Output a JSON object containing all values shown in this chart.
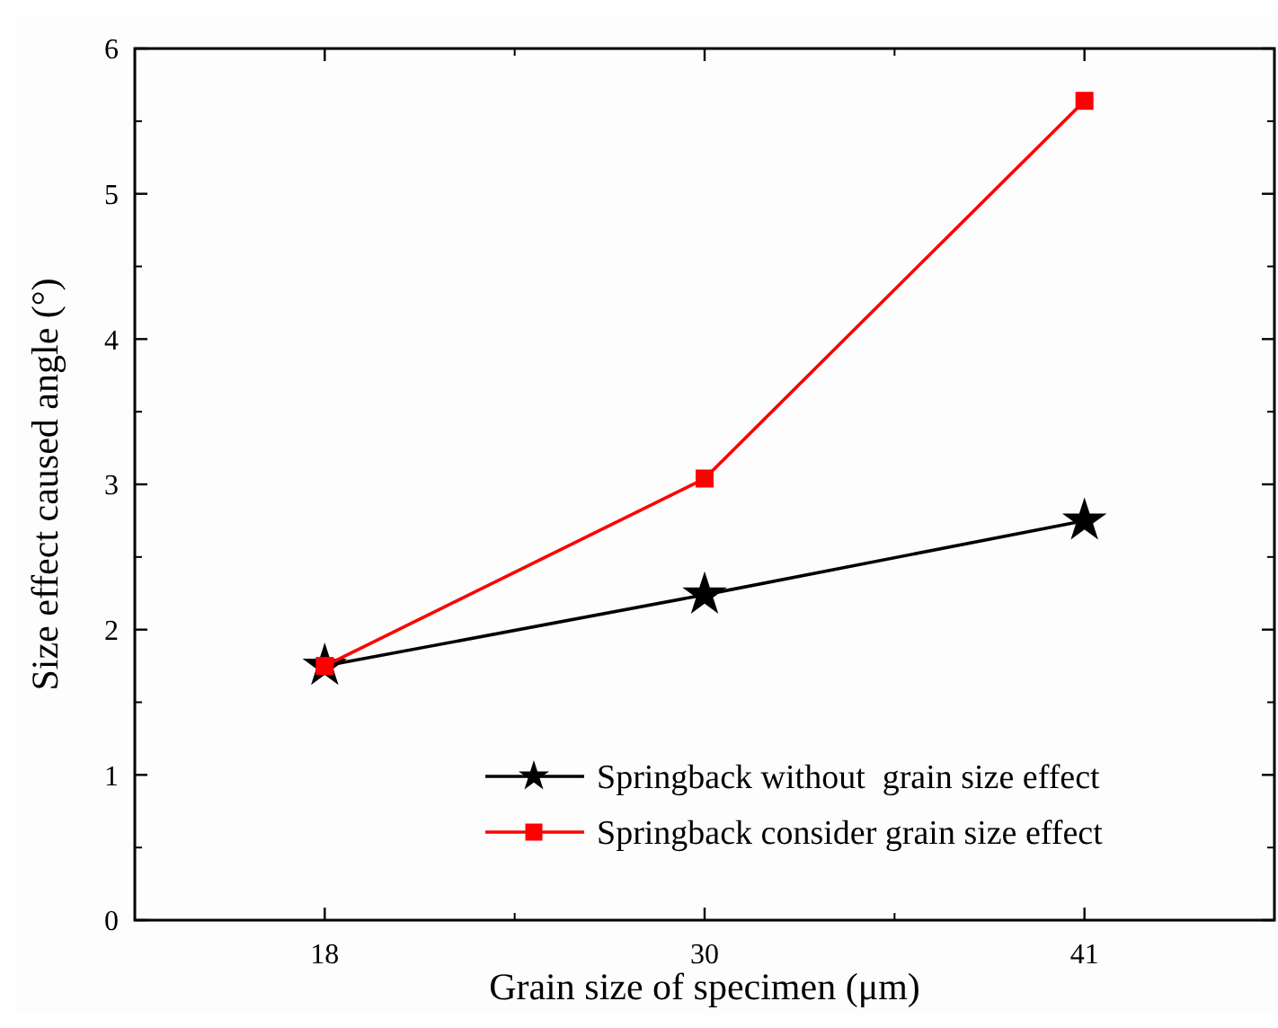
{
  "chart_data": {
    "type": "line",
    "xlabel": "Grain size of specimen (μm)",
    "ylabel": "Size effect caused angle (°)",
    "categories": [
      "18",
      "30",
      "41"
    ],
    "series": [
      {
        "name": "Springback without  grain size effect",
        "color": "#000000",
        "marker": "star",
        "values": [
          1.75,
          2.24,
          2.75
        ]
      },
      {
        "name": "Springback consider grain size effect",
        "color": "#ff0000",
        "marker": "square",
        "values": [
          1.75,
          3.04,
          5.64
        ]
      }
    ],
    "ylim": [
      0,
      6
    ],
    "yticks": [
      0,
      1,
      2,
      3,
      4,
      5,
      6
    ],
    "legend": "bottom right"
  }
}
